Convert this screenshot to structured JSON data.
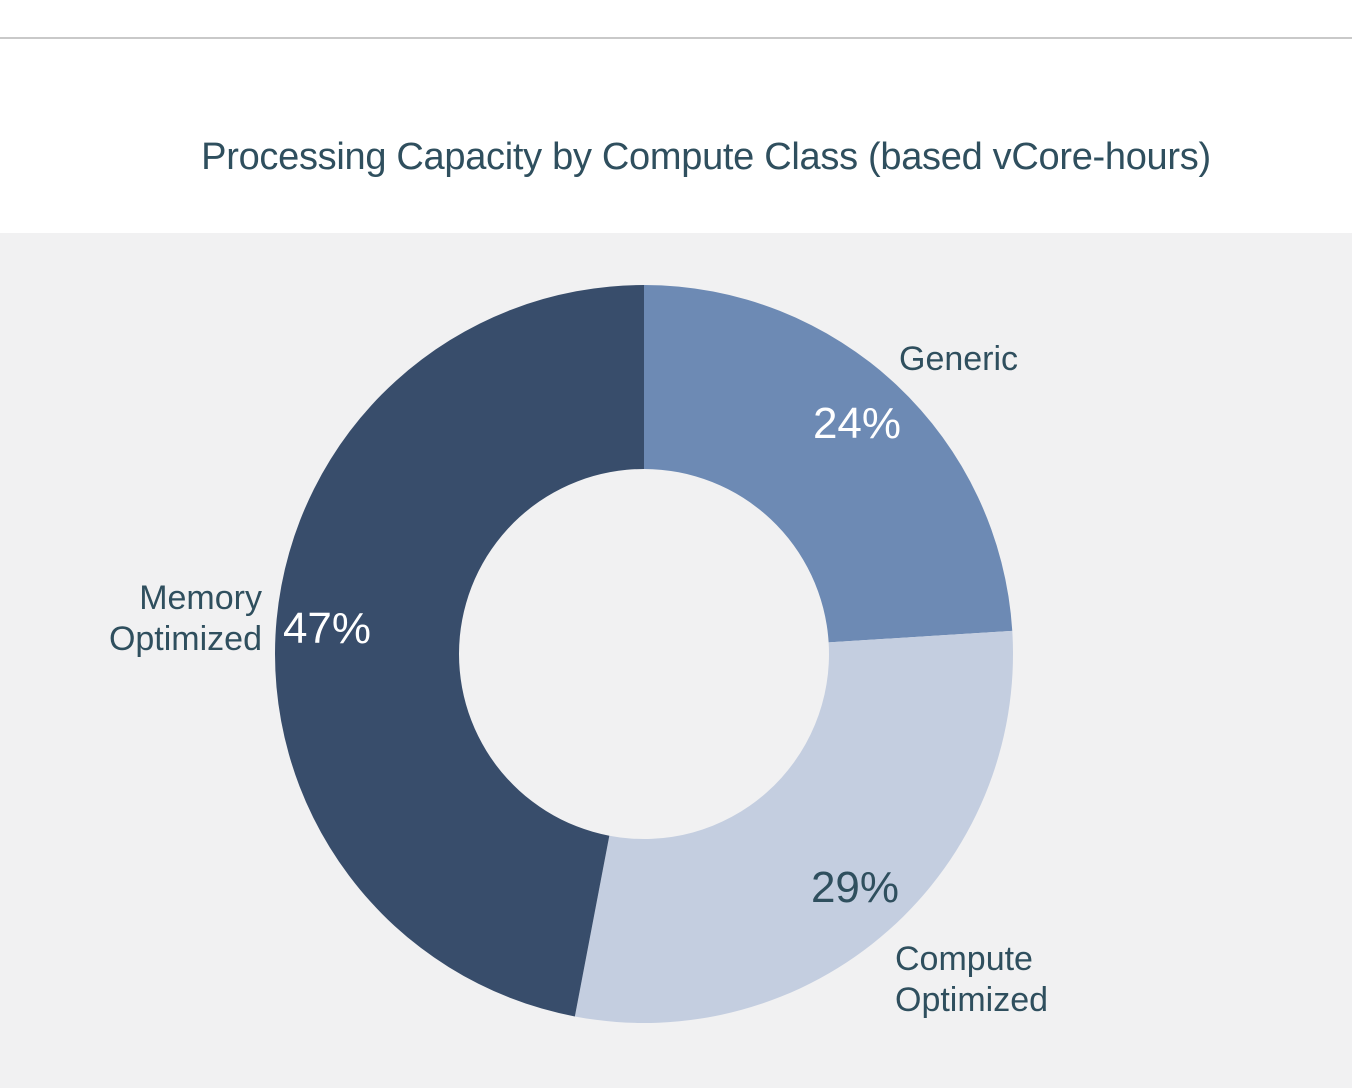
{
  "chart_data": {
    "type": "pie",
    "title": "Processing Capacity by Compute Class (based vCore-hours)",
    "donut": true,
    "slices": [
      {
        "label": [
          "Generic"
        ],
        "value": 24,
        "value_label": "24%",
        "color": "#6d8ab4",
        "label_color": "#ffffff"
      },
      {
        "label": [
          "Compute",
          "Optimized"
        ],
        "value": 29,
        "value_label": "29%",
        "color": "#c4cee0",
        "label_color": "#2f4f5e"
      },
      {
        "label": [
          "Memory",
          "Optimized"
        ],
        "value": 47,
        "value_label": "47%",
        "color": "#384d6b",
        "label_color": "#ffffff"
      }
    ],
    "colors": {
      "title": "#2f4f5e",
      "plot_background": "#f1f1f2",
      "category_label": "#2f4f5e"
    }
  }
}
